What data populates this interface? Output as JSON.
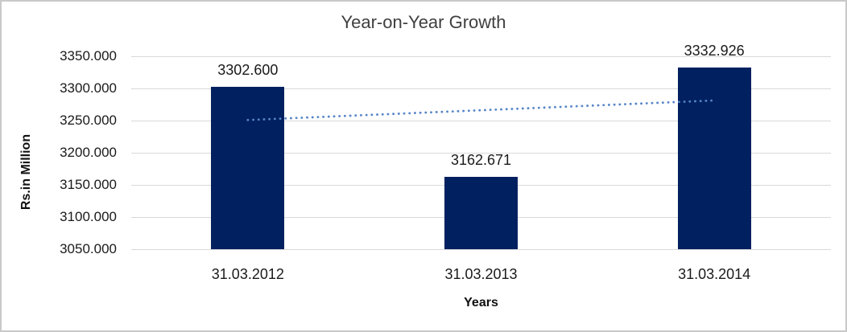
{
  "chart_data": {
    "type": "bar",
    "title": "Year-on-Year Growth",
    "xlabel": "Years",
    "ylabel": "Rs.in Million",
    "categories": [
      "31.03.2012",
      "31.03.2013",
      "31.03.2014"
    ],
    "values": [
      3302.6,
      3162.671,
      3332.926
    ],
    "data_labels": [
      "3302.600",
      "3162.671",
      "3332.926"
    ],
    "ylim": [
      3050,
      3350
    ],
    "ytick_step": 50,
    "ytick_labels": [
      "3050.000",
      "3100.000",
      "3150.000",
      "3200.000",
      "3250.000",
      "3300.000",
      "3350.000"
    ],
    "grid": true,
    "legend_position": "none",
    "bar_color": "#002060",
    "gridline_color": "#d9d9d9",
    "trendline": {
      "type": "linear",
      "style": "dotted",
      "color": "#5585c8",
      "start_value": 3250.9,
      "end_value": 3281.3
    }
  }
}
